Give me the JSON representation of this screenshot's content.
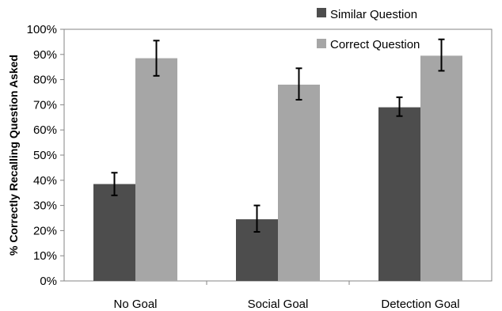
{
  "chart_data": {
    "type": "bar",
    "title": "",
    "xlabel": "",
    "ylabel": "% Correctly Recalling Question Asked",
    "ylim": [
      0,
      100
    ],
    "ytick_values": [
      0,
      10,
      20,
      30,
      40,
      50,
      60,
      70,
      80,
      90,
      100
    ],
    "ytick_labels": [
      "0%",
      "10%",
      "20%",
      "30%",
      "40%",
      "50%",
      "60%",
      "70%",
      "80%",
      "90%",
      "100%"
    ],
    "categories": [
      "No Goal",
      "Social Goal",
      "Detection Goal"
    ],
    "series": [
      {
        "name": "Similar Question",
        "color": "#4d4d4d",
        "values": [
          38.5,
          24.5,
          69
        ],
        "error_low": [
          34,
          19.5,
          65.5
        ],
        "error_high": [
          43,
          30,
          73
        ]
      },
      {
        "name": "Correct Question",
        "color": "#a6a6a6",
        "values": [
          88.5,
          78,
          89.5
        ],
        "error_low": [
          81.5,
          72,
          83.5
        ],
        "error_high": [
          95.5,
          84.5,
          96
        ]
      }
    ],
    "grid": false,
    "legend_position": "top-right",
    "error_bars": true
  }
}
